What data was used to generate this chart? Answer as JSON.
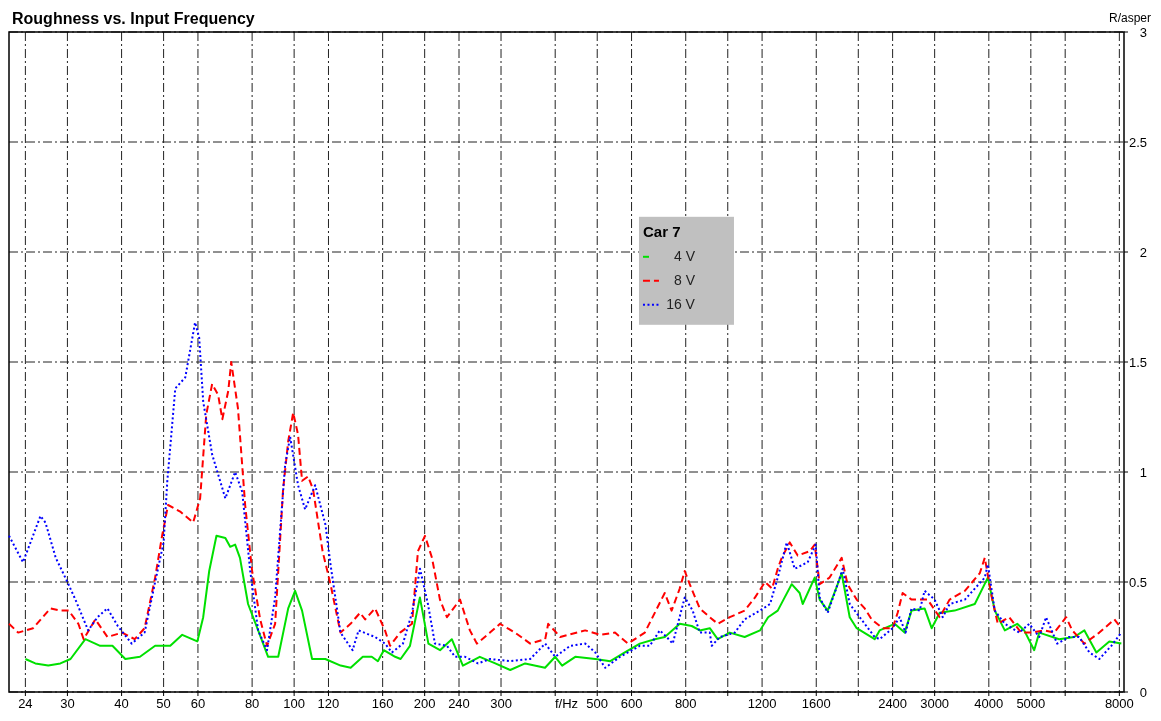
{
  "chart_data": {
    "type": "line",
    "title": "Roughness vs. Input Frequency",
    "xlabel": "f/Hz",
    "ylabel": "R/asper",
    "legend_title": "Car 7",
    "legend": "top",
    "grid": true,
    "log": "x",
    "xlim": [
      22,
      8200
    ],
    "ylim": [
      0,
      3
    ],
    "xticks": [
      24,
      30,
      40,
      50,
      60,
      80,
      100,
      120,
      160,
      200,
      240,
      300,
      {
        "value": 400,
        "label": null
      },
      500,
      600,
      800,
      {
        "value": 1000,
        "label": null
      },
      1200,
      1600,
      {
        "value": 2000,
        "label": null
      },
      2400,
      3000,
      4000,
      5000,
      {
        "value": 6000,
        "label": null
      },
      8000
    ],
    "yticks": [
      0,
      0.5,
      1,
      1.5,
      2,
      2.5,
      3
    ],
    "series": [
      {
        "name": "4 V",
        "color": "#00e000",
        "line_style": "solid",
        "x": [
          24,
          25.3,
          27.1,
          28.9,
          30.5,
          33,
          35.7,
          38.1,
          40.8,
          44.1,
          47.8,
          51.8,
          55.2,
          59.8,
          61.7,
          63.7,
          66.2,
          69.4,
          71.2,
          73.1,
          75,
          78.3,
          82.6,
          87.1,
          91.9,
          96.9,
          100.5,
          104.3,
          110,
          118,
          128,
          135,
          144,
          151,
          156,
          161,
          171,
          176,
          185,
          195,
          204,
          217,
          231,
          245,
          268,
          291,
          315,
          341,
          379,
          400,
          415,
          445,
          495,
          536,
          579,
          627,
          679,
          716,
          775,
          826,
          862,
          909,
          948,
          1011,
          1094,
          1187,
          1239,
          1304,
          1353,
          1404,
          1465,
          1489,
          1587,
          1629,
          1700,
          1793,
          1831,
          1911,
          1983,
          2182,
          2240,
          2426,
          2558,
          2654,
          2844,
          2953,
          3081,
          3336,
          3713,
          3979,
          4129,
          4354,
          4652,
          4827,
          5090,
          5228,
          5812,
          6293,
          6645,
          7082,
          7584,
          8085
        ],
        "values": [
          0.15,
          0.13,
          0.12,
          0.13,
          0.15,
          0.24,
          0.21,
          0.21,
          0.15,
          0.16,
          0.21,
          0.21,
          0.26,
          0.23,
          0.34,
          0.55,
          0.71,
          0.7,
          0.66,
          0.67,
          0.61,
          0.4,
          0.28,
          0.16,
          0.16,
          0.38,
          0.46,
          0.37,
          0.15,
          0.15,
          0.12,
          0.11,
          0.16,
          0.16,
          0.14,
          0.19,
          0.16,
          0.15,
          0.21,
          0.43,
          0.22,
          0.19,
          0.24,
          0.12,
          0.16,
          0.13,
          0.1,
          0.13,
          0.11,
          0.16,
          0.12,
          0.16,
          0.15,
          0.14,
          0.18,
          0.22,
          0.24,
          0.25,
          0.31,
          0.3,
          0.28,
          0.29,
          0.24,
          0.27,
          0.25,
          0.28,
          0.34,
          0.37,
          0.43,
          0.49,
          0.45,
          0.4,
          0.52,
          0.42,
          0.37,
          0.49,
          0.54,
          0.34,
          0.29,
          0.24,
          0.28,
          0.31,
          0.27,
          0.37,
          0.38,
          0.29,
          0.36,
          0.37,
          0.4,
          0.52,
          0.37,
          0.28,
          0.31,
          0.28,
          0.19,
          0.27,
          0.24,
          0.25,
          0.28,
          0.18,
          0.23,
          0.22
        ]
      },
      {
        "name": "8 V",
        "color": "#ff0000",
        "line_style": "dashed",
        "x": [
          22,
          23.1,
          25,
          27.4,
          28.9,
          30.2,
          31.8,
          32.7,
          34.8,
          37.1,
          40.1,
          42.9,
          45.2,
          47.8,
          49.6,
          51.2,
          54.6,
          58.5,
          60.7,
          62.7,
          64.7,
          66.8,
          68.3,
          70.5,
          71.6,
          74.2,
          77.1,
          80,
          83.5,
          86.6,
          90.4,
          94.3,
          96.9,
          99.5,
          102.1,
          104.3,
          107.7,
          110.6,
          116.3,
          121.3,
          127.9,
          134.9,
          141.9,
          145.8,
          153.7,
          162,
          166.4,
          175.5,
          187,
          193,
          200.3,
          207.9,
          216.9,
          225.1,
          241.3,
          254.3,
          263.9,
          282.9,
          298.4,
          323.1,
          350.3,
          379.3,
          385.4,
          410.8,
          469.1,
          508,
          549.5,
          588.7,
          643.8,
          715.6,
          742.2,
          774.9,
          795.8,
          817.1,
          861.7,
          909,
          948.3,
          1010.7,
          1094,
          1156,
          1219,
          1265,
          1304,
          1332,
          1390,
          1450,
          1545,
          1587,
          1629,
          1717,
          1831,
          1889,
          1983,
          2069,
          2147,
          2276,
          2400,
          2465,
          2531,
          2654,
          2890,
          3081,
          3249,
          3522,
          3813,
          3915,
          4064,
          4196,
          4458,
          4751,
          5037,
          5366,
          5659,
          6032,
          6229,
          6645,
          7193,
          7790,
          8085
        ],
        "values": [
          0.31,
          0.27,
          0.29,
          0.38,
          0.37,
          0.37,
          0.31,
          0.24,
          0.33,
          0.25,
          0.27,
          0.24,
          0.29,
          0.52,
          0.71,
          0.85,
          0.82,
          0.77,
          0.88,
          1.26,
          1.4,
          1.35,
          1.24,
          1.37,
          1.5,
          1.29,
          0.85,
          0.55,
          0.33,
          0.21,
          0.31,
          0.92,
          1.14,
          1.27,
          1.17,
          0.96,
          0.98,
          0.92,
          0.64,
          0.49,
          0.27,
          0.31,
          0.36,
          0.33,
          0.38,
          0.28,
          0.21,
          0.27,
          0.31,
          0.64,
          0.71,
          0.61,
          0.42,
          0.34,
          0.42,
          0.28,
          0.22,
          0.27,
          0.31,
          0.27,
          0.22,
          0.24,
          0.31,
          0.25,
          0.28,
          0.26,
          0.27,
          0.22,
          0.27,
          0.45,
          0.37,
          0.47,
          0.55,
          0.49,
          0.38,
          0.34,
          0.31,
          0.34,
          0.37,
          0.43,
          0.5,
          0.47,
          0.56,
          0.61,
          0.68,
          0.62,
          0.64,
          0.67,
          0.49,
          0.52,
          0.61,
          0.49,
          0.42,
          0.38,
          0.33,
          0.29,
          0.29,
          0.36,
          0.45,
          0.42,
          0.42,
          0.34,
          0.42,
          0.46,
          0.54,
          0.61,
          0.43,
          0.31,
          0.34,
          0.27,
          0.27,
          0.28,
          0.27,
          0.34,
          0.28,
          0.22,
          0.27,
          0.33,
          0.29
        ]
      },
      {
        "name": "16 V",
        "color": "#0000ff",
        "line_style": "dotted",
        "x": [
          22,
          23.7,
          26,
          26.7,
          28.2,
          30,
          31.3,
          33.5,
          35.2,
          37.1,
          39.2,
          42.2,
          45.2,
          47.8,
          50,
          51,
          53.2,
          56.1,
          59.1,
          60.4,
          61.7,
          64.7,
          69.4,
          73.1,
          75.9,
          79.2,
          82.6,
          86.6,
          90.4,
          95.3,
          97.9,
          102.1,
          106,
          111.8,
          118.1,
          121.3,
          127.9,
          136.4,
          140.8,
          153.7,
          162,
          168.1,
          178.2,
          187,
          195.1,
          203.5,
          211.2,
          225.1,
          235,
          247.8,
          265.5,
          282.9,
          314.6,
          350.3,
          379.3,
          400,
          433.2,
          469.1,
          494.7,
          521.7,
          564.2,
          627,
          661,
          697,
          723,
          746.6,
          795.8,
          830,
          861.7,
          909,
          918.6,
          958.4,
          1037.8,
          1094,
          1187,
          1252,
          1304,
          1368,
          1427,
          1529,
          1595,
          1629,
          1700,
          1793,
          1841,
          1911,
          2015,
          2182,
          2240,
          2400,
          2490,
          2571,
          2654,
          2771,
          2844,
          3000,
          3130,
          3249,
          3522,
          3915,
          3979,
          4129,
          4354,
          4701,
          4958,
          5228,
          5421,
          5750,
          6129,
          6462,
          6822,
          7193,
          7667,
          8085
        ],
        "values": [
          0.71,
          0.59,
          0.8,
          0.77,
          0.61,
          0.5,
          0.42,
          0.28,
          0.34,
          0.38,
          0.3,
          0.22,
          0.27,
          0.5,
          0.68,
          0.96,
          1.38,
          1.43,
          1.68,
          1.61,
          1.32,
          1.08,
          0.88,
          1,
          0.91,
          0.55,
          0.28,
          0.19,
          0.43,
          1.03,
          1.16,
          0.94,
          0.83,
          0.94,
          0.76,
          0.58,
          0.27,
          0.19,
          0.28,
          0.25,
          0.22,
          0.18,
          0.22,
          0.36,
          0.56,
          0.4,
          0.22,
          0.21,
          0.16,
          0.16,
          0.13,
          0.15,
          0.14,
          0.15,
          0.22,
          0.16,
          0.21,
          0.22,
          0.18,
          0.11,
          0.16,
          0.21,
          0.21,
          0.28,
          0.25,
          0.22,
          0.43,
          0.37,
          0.27,
          0.27,
          0.21,
          0.25,
          0.27,
          0.33,
          0.37,
          0.4,
          0.52,
          0.68,
          0.56,
          0.59,
          0.67,
          0.43,
          0.36,
          0.49,
          0.56,
          0.4,
          0.34,
          0.25,
          0.24,
          0.29,
          0.34,
          0.27,
          0.38,
          0.37,
          0.46,
          0.42,
          0.34,
          0.4,
          0.42,
          0.52,
          0.58,
          0.37,
          0.31,
          0.27,
          0.31,
          0.25,
          0.34,
          0.22,
          0.25,
          0.25,
          0.18,
          0.15,
          0.21,
          0.27
        ]
      }
    ]
  }
}
